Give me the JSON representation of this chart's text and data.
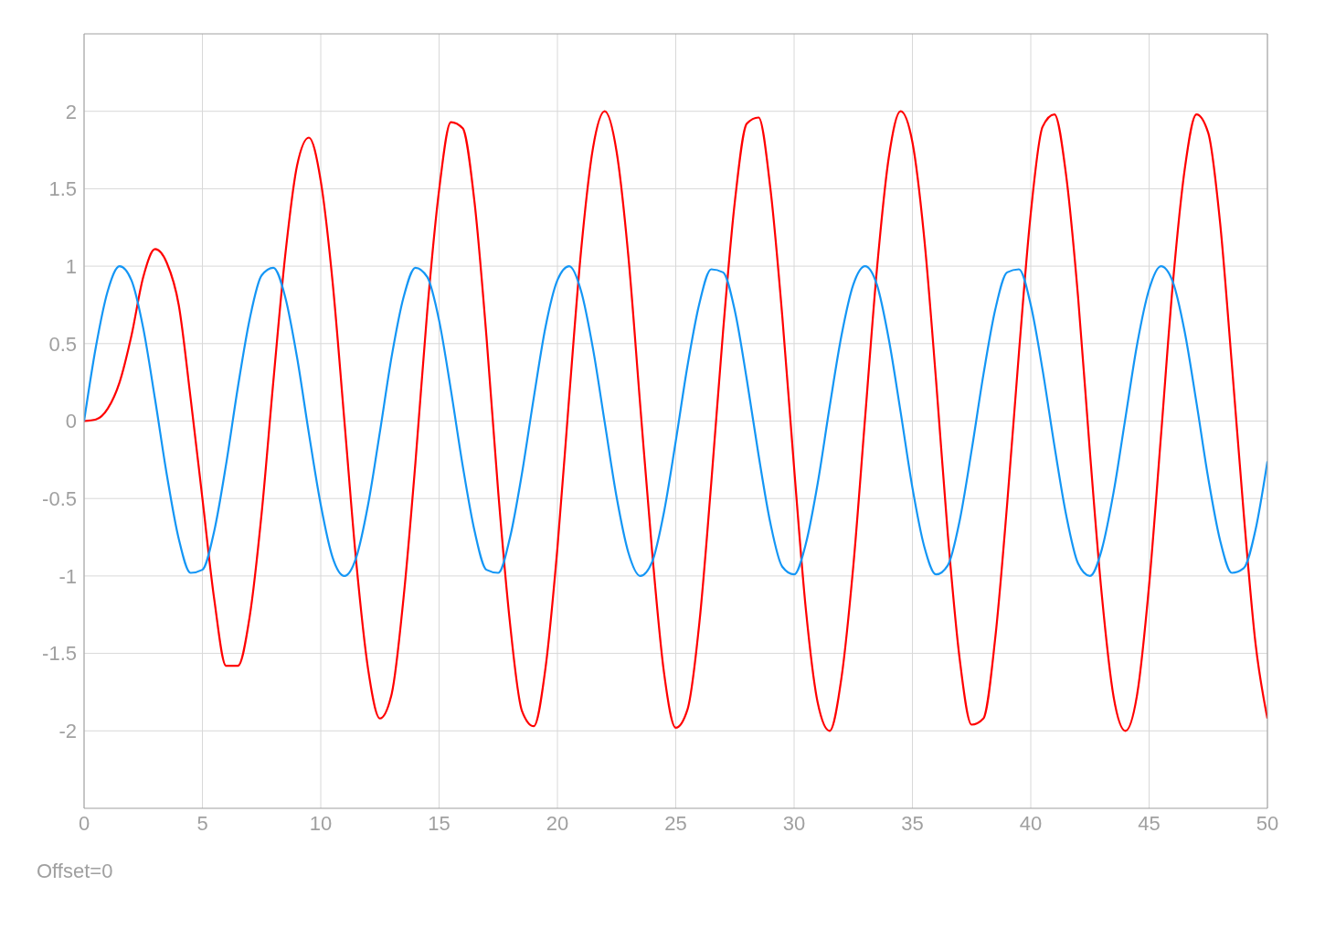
{
  "chart_data": {
    "type": "line",
    "x": [
      0,
      0.5,
      1,
      1.5,
      2,
      2.5,
      3,
      3.5,
      4,
      4.5,
      5,
      5.5,
      6,
      6.5,
      7,
      7.5,
      8,
      8.5,
      9,
      9.5,
      10,
      10.5,
      11,
      11.5,
      12,
      12.5,
      13,
      13.5,
      14,
      14.5,
      15,
      15.5,
      16,
      16.5,
      17,
      17.5,
      18,
      18.5,
      19,
      19.5,
      20,
      20.5,
      21,
      21.5,
      22,
      22.5,
      23,
      23.5,
      24,
      24.5,
      25,
      25.5,
      26,
      26.5,
      27,
      27.5,
      28,
      28.5,
      29,
      29.5,
      30,
      30.5,
      31,
      31.5,
      32,
      32.5,
      33,
      33.5,
      34,
      34.5,
      35,
      35.5,
      36,
      36.5,
      37,
      37.5,
      38,
      38.5,
      39,
      39.5,
      40,
      40.5,
      41,
      41.5,
      42,
      42.5,
      43,
      43.5,
      44,
      44.5,
      45,
      45.5,
      46,
      46.5,
      47,
      47.5,
      48,
      48.5,
      49,
      49.5,
      50
    ],
    "series": [
      {
        "color": "#ff0000",
        "values": [
          0,
          0.01,
          0.08,
          0.25,
          0.55,
          0.93,
          1.11,
          1.02,
          0.75,
          0.15,
          -0.5,
          -1.15,
          -1.58,
          -1.58,
          -1.26,
          -0.6,
          0.26,
          1.07,
          1.65,
          1.83,
          1.55,
          0.9,
          0,
          -0.91,
          -1.6,
          -1.92,
          -1.76,
          -1.14,
          -0.27,
          0.71,
          1.49,
          1.93,
          1.89,
          1.41,
          0.55,
          -0.46,
          -1.31,
          -1.87,
          -1.97,
          -1.59,
          -0.82,
          0.16,
          1.1,
          1.76,
          2,
          1.74,
          1.06,
          0.1,
          -0.84,
          -1.62,
          -1.98,
          -1.86,
          -1.3,
          -0.4,
          0.58,
          1.42,
          1.92,
          1.96,
          1.5,
          0.68,
          -0.3,
          -1.22,
          -1.82,
          -2,
          -1.66,
          -0.94,
          0.02,
          0.98,
          1.7,
          2,
          1.8,
          1.18,
          0.26,
          -0.74,
          -1.54,
          -1.96,
          -1.92,
          -1.4,
          -0.54,
          0.44,
          1.34,
          1.9,
          1.98,
          1.58,
          0.8,
          -0.2,
          -1.12,
          -1.78,
          -2,
          -1.76,
          -1.06,
          -0.1,
          0.88,
          1.62,
          1.98,
          1.86,
          1.28,
          0.36,
          -0.6,
          -1.44,
          -1.92
        ]
      },
      {
        "color": "#1496f5",
        "values": [
          0,
          0.48,
          0.84,
          1,
          0.91,
          0.6,
          0.14,
          -0.35,
          -0.76,
          -0.98,
          -0.96,
          -0.71,
          -0.28,
          0.22,
          0.66,
          0.94,
          0.99,
          0.8,
          0.41,
          -0.08,
          -0.54,
          -0.88,
          -1,
          -0.88,
          -0.54,
          -0.07,
          0.42,
          0.8,
          0.99,
          0.93,
          0.65,
          0.2,
          -0.29,
          -0.71,
          -0.96,
          -0.98,
          -0.75,
          -0.34,
          0.15,
          0.61,
          0.91,
          1,
          0.84,
          0.47,
          -0.01,
          -0.49,
          -0.85,
          -1,
          -0.91,
          -0.59,
          -0.13,
          0.36,
          0.76,
          0.98,
          0.96,
          0.71,
          0.27,
          -0.22,
          -0.66,
          -0.94,
          -0.99,
          -0.79,
          -0.4,
          0.09,
          0.55,
          0.88,
          1,
          0.88,
          0.53,
          0.06,
          -0.43,
          -0.81,
          -0.99,
          -0.93,
          -0.64,
          -0.19,
          0.3,
          0.72,
          0.96,
          0.98,
          0.75,
          0.33,
          -0.16,
          -0.61,
          -0.92,
          -1,
          -0.83,
          -0.46,
          0.02,
          0.5,
          0.85,
          1,
          0.9,
          0.58,
          0.12,
          -0.37,
          -0.77,
          -0.98,
          -0.95,
          -0.7,
          -0.26
        ]
      }
    ],
    "xlim": [
      0,
      50
    ],
    "xticks": [
      0,
      5,
      10,
      15,
      20,
      25,
      30,
      35,
      40,
      45,
      50
    ],
    "ylim": [
      -2.5,
      2.5
    ],
    "yticks": [
      -2,
      -1.5,
      -1,
      -0.5,
      0,
      0.5,
      1,
      1.5,
      2
    ],
    "grid": true,
    "marker": "none",
    "line_style": "solid",
    "annotations": [
      "Offset=0"
    ]
  }
}
